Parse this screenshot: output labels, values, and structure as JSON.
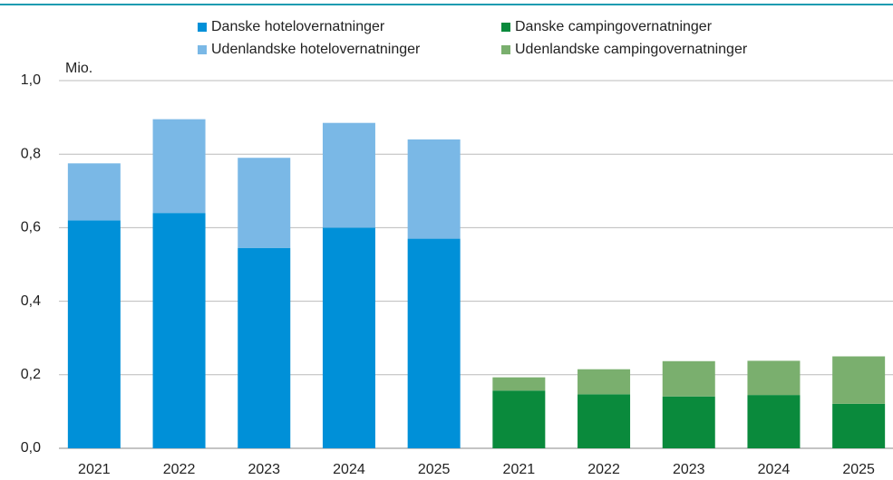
{
  "chart_data": {
    "type": "stacked_bar",
    "unit_label": "Mio.",
    "categories": [
      "2021",
      "2022",
      "2023",
      "2024",
      "2025",
      "2021",
      "2022",
      "2023",
      "2024",
      "2025"
    ],
    "series": [
      {
        "name": "Danske hotelovernatninger",
        "color": "#0090d8",
        "values": [
          0.62,
          0.64,
          0.545,
          0.6,
          0.57,
          null,
          null,
          null,
          null,
          null
        ]
      },
      {
        "name": "Udenlandske hotelovernatninger",
        "color": "#7ab8e6",
        "values": [
          0.155,
          0.255,
          0.245,
          0.285,
          0.27,
          null,
          null,
          null,
          null,
          null
        ]
      },
      {
        "name": "Danske campingovernatninger",
        "color": "#0a8a3c",
        "values": [
          null,
          null,
          null,
          null,
          null,
          0.157,
          0.147,
          0.141,
          0.145,
          0.121
        ]
      },
      {
        "name": "Udenlandske campingovernatninger",
        "color": "#7aaf6e",
        "values": [
          null,
          null,
          null,
          null,
          null,
          0.036,
          0.068,
          0.096,
          0.093,
          0.129
        ]
      }
    ],
    "ylim": [
      0,
      1
    ],
    "yticks": [
      {
        "value": 0,
        "label": "0,0"
      },
      {
        "value": 0.2,
        "label": "0,2"
      },
      {
        "value": 0.4,
        "label": "0,4"
      },
      {
        "value": 0.6,
        "label": "0,6"
      },
      {
        "value": 0.8,
        "label": "0,8"
      },
      {
        "value": 1,
        "label": "1,0"
      }
    ],
    "grid": true
  }
}
